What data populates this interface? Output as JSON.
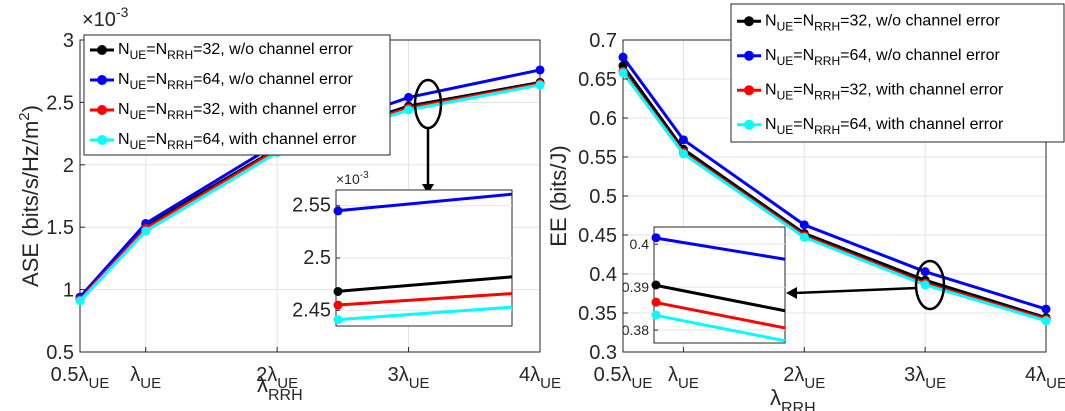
{
  "chart_data": [
    {
      "type": "line",
      "ylabel": "ASE (bits/s/Hz/m²)",
      "ylabel_parts": {
        "main": "ASE (bits/s/Hz/m",
        "sup": "2",
        "tail": ")"
      },
      "xlabel": "λRRH",
      "xlabel_parts": {
        "sym": "λ",
        "sub": "RRH"
      },
      "y_exponent": "×10-3",
      "y_exponent_parts": {
        "base": "×10",
        "sup": "-3"
      },
      "ylim": [
        0.5,
        3.0
      ],
      "yticks": [
        0.5,
        1,
        1.5,
        2,
        2.5,
        3
      ],
      "ytick_labels": [
        "0.5",
        "1",
        "1.5",
        "2",
        "2.5",
        "3"
      ],
      "x": [
        0.5,
        1,
        2,
        3,
        4
      ],
      "xlim": [
        0.5,
        4
      ],
      "xtick_labels": [
        {
          "coef": "0.5",
          "sym": "λ",
          "sub": "UE"
        },
        {
          "coef": "",
          "sym": "λ",
          "sub": "UE"
        },
        {
          "coef": "2",
          "sym": "λ",
          "sub": "UE"
        },
        {
          "coef": "3",
          "sym": "λ",
          "sub": "UE"
        },
        {
          "coef": "4",
          "sym": "λ",
          "sub": "UE"
        }
      ],
      "grid": true,
      "legend_position": "upper-left",
      "series": [
        {
          "name": "NUE=NRRH=32, w/o channel error",
          "color": "#000000",
          "values": [
            0.93,
            1.51,
            2.13,
            2.47,
            2.66
          ]
        },
        {
          "name": "NUE=NRRH=64, w/o channel error",
          "color": "#0000ff",
          "values": [
            0.94,
            1.53,
            2.17,
            2.54,
            2.76
          ]
        },
        {
          "name": "NUE=NRRH=32, with channel error",
          "color": "#ff0000",
          "values": [
            0.92,
            1.49,
            2.12,
            2.455,
            2.65
          ]
        },
        {
          "name": "NUE=NRRH=64, with channel error",
          "color": "#00ffff",
          "values": [
            0.91,
            1.47,
            2.1,
            2.44,
            2.64
          ]
        }
      ],
      "inset": {
        "y_exponent_parts": {
          "base": "×10",
          "sup": "-3"
        },
        "ylim": [
          2.435,
          2.565
        ],
        "yticks": [
          2.45,
          2.5,
          2.55
        ],
        "ytick_labels": [
          "2.45",
          "2.5",
          "2.55"
        ],
        "x": [
          3,
          3.3
        ],
        "series_values": [
          [
            2.468,
            2.482
          ],
          [
            2.545,
            2.561
          ],
          [
            2.455,
            2.466
          ],
          [
            2.441,
            2.453
          ]
        ]
      }
    },
    {
      "type": "line",
      "ylabel": "EE (bits/J)",
      "xlabel": "λRRH",
      "xlabel_parts": {
        "sym": "λ",
        "sub": "RRH"
      },
      "ylim": [
        0.3,
        0.7
      ],
      "yticks": [
        0.3,
        0.35,
        0.4,
        0.45,
        0.5,
        0.55,
        0.6,
        0.65,
        0.7
      ],
      "ytick_labels": [
        "0.3",
        "0.35",
        "0.4",
        "0.45",
        "0.5",
        "0.55",
        "0.6",
        "0.65",
        "0.7"
      ],
      "x": [
        0.5,
        1,
        2,
        3,
        4
      ],
      "xlim": [
        0.5,
        4
      ],
      "xtick_labels": [
        {
          "coef": "0.5",
          "sym": "λ",
          "sub": "UE"
        },
        {
          "coef": "",
          "sym": "λ",
          "sub": "UE"
        },
        {
          "coef": "2",
          "sym": "λ",
          "sub": "UE"
        },
        {
          "coef": "3",
          "sym": "λ",
          "sub": "UE"
        },
        {
          "coef": "4",
          "sym": "λ",
          "sub": "UE"
        }
      ],
      "grid": true,
      "legend_position": "top-right",
      "series": [
        {
          "name": "NUE=NRRH=32, w/o channel error",
          "color": "#000000",
          "values": [
            0.667,
            0.56,
            0.452,
            0.392,
            0.344
          ]
        },
        {
          "name": "NUE=NRRH=64, w/o channel error",
          "color": "#0000ff",
          "values": [
            0.678,
            0.572,
            0.463,
            0.403,
            0.355
          ]
        },
        {
          "name": "NUE=NRRH=32, with channel error",
          "color": "#ff0000",
          "values": [
            0.66,
            0.556,
            0.449,
            0.388,
            0.342
          ]
        },
        {
          "name": "NUE=NRRH=64, with channel error",
          "color": "#00ffff",
          "values": [
            0.658,
            0.554,
            0.447,
            0.386,
            0.34
          ]
        }
      ],
      "inset": {
        "ylim": [
          0.377,
          0.404
        ],
        "yticks": [
          0.38,
          0.39,
          0.4
        ],
        "ytick_labels": [
          "0.38",
          "0.39",
          "0.4"
        ],
        "x": [
          3,
          3.3
        ],
        "series_values": [
          [
            0.3905,
            0.3845
          ],
          [
            0.4015,
            0.3965
          ],
          [
            0.3865,
            0.3805
          ],
          [
            0.3835,
            0.3775
          ]
        ]
      }
    }
  ],
  "legend_labels": [
    {
      "n1": "N",
      "s1": "UE",
      "eq1": "=N",
      "s2": "RRH",
      "rest": "=32, w/o channel error"
    },
    {
      "n1": "N",
      "s1": "UE",
      "eq1": "=N",
      "s2": "RRH",
      "rest": "=64, w/o channel error"
    },
    {
      "n1": "N",
      "s1": "UE",
      "eq1": "=N",
      "s2": "RRH",
      "rest": "=32, with channel error"
    },
    {
      "n1": "N",
      "s1": "UE",
      "eq1": "=N",
      "s2": "RRH",
      "rest": "=64, with channel error"
    }
  ]
}
